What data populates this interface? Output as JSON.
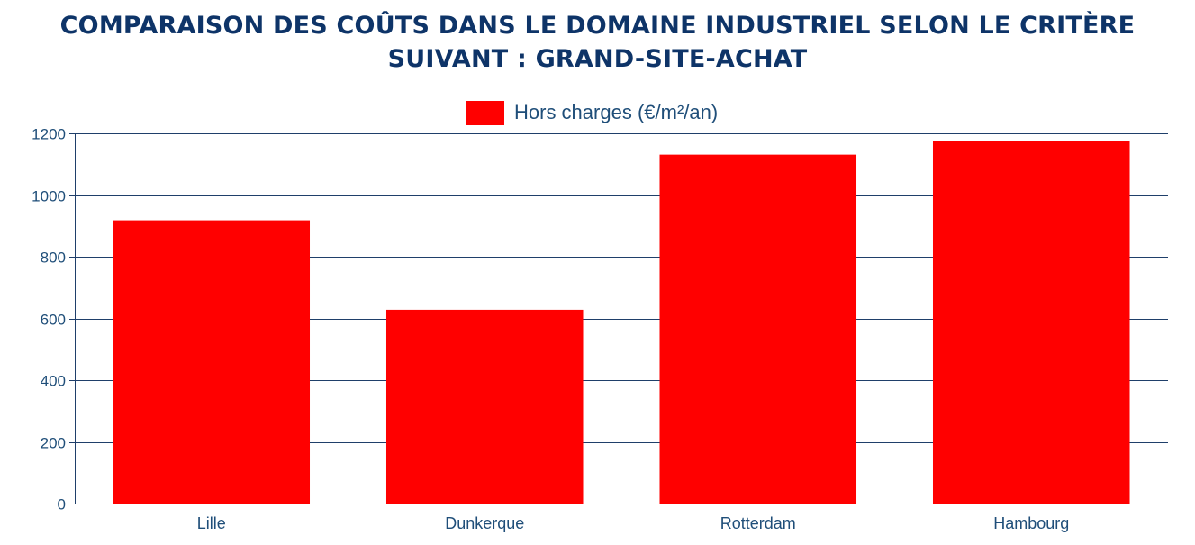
{
  "title_lines": [
    "COMPARAISON DES COÛTS DANS LE DOMAINE INDUSTRIEL SELON LE CRITÈRE",
    "SUIVANT : GRAND-SITE-ACHAT"
  ],
  "colors": {
    "title": "#0e3468",
    "bar": "#ff0000",
    "grid": "#1f3f6a",
    "axis_text": "#1f4e79"
  },
  "chart_data": {
    "type": "bar",
    "title": "COMPARAISON DES COÛTS DANS LE DOMAINE INDUSTRIEL SELON LE CRITÈRE SUIVANT : GRAND-SITE-ACHAT",
    "categories": [
      "Lille",
      "Dunkerque",
      "Rotterdam",
      "Hambourg"
    ],
    "series": [
      {
        "name": "Hors charges (€/m²/an)",
        "values": [
          918,
          628,
          1131,
          1176
        ]
      }
    ],
    "yticks": [
      0,
      200,
      400,
      600,
      800,
      1000,
      1200
    ],
    "ylim": [
      0,
      1200
    ],
    "grid": true,
    "legend_position": "top"
  }
}
